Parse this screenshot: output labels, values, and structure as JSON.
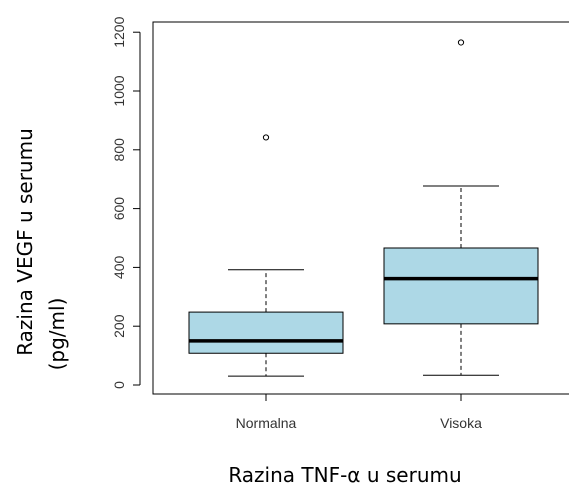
{
  "chart_data": {
    "type": "box",
    "title": "",
    "xlabel": "Razina TNF-α u serumu",
    "ylabel_line1": "Razina VEGF u serumu",
    "ylabel_line2": "(pg/ml)",
    "ylim": [
      -40,
      1220
    ],
    "yticks": [
      0,
      200,
      400,
      600,
      800,
      1000,
      1200
    ],
    "yticks_labels": [
      "0",
      "200",
      "400",
      "600",
      "800",
      "1000",
      "1200"
    ],
    "categories": [
      "Normalna",
      "Visoka"
    ],
    "boxes": [
      {
        "category": "Normalna",
        "whisker_low": 30,
        "q1": 108,
        "median": 150,
        "q3": 248,
        "whisker_high": 392,
        "outliers": [
          842
        ]
      },
      {
        "category": "Visoka",
        "whisker_low": 33,
        "q1": 208,
        "median": 362,
        "q3": 466,
        "whisker_high": 677,
        "outliers": [
          1165
        ]
      }
    ],
    "box_fill": "#add8e6",
    "line_color": "#000000",
    "grid": false,
    "legend": "none"
  }
}
